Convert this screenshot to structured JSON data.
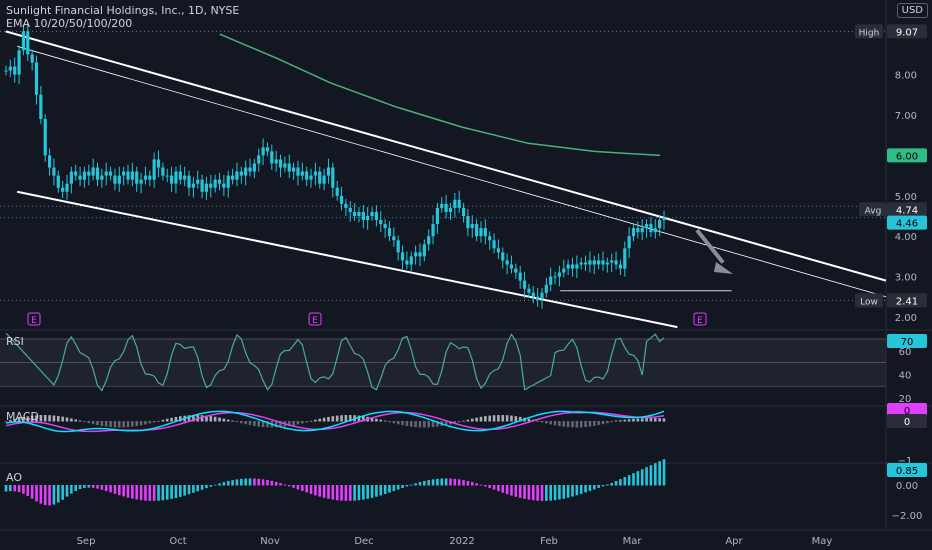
{
  "header": {
    "symbol_title": "Sunlight Financial Holdings, Inc., 1D, NYSE",
    "indicator": "EMA 10/20/50/100/200",
    "currency": "USD"
  },
  "colors": {
    "background": "#131722",
    "candle": "#26c6da",
    "channel": "#ffffff",
    "ema200": "#4caf7a",
    "ema_label": "#2ebd85",
    "rsi_line": "#4aa8a8",
    "rsi_band": "#2a2e39",
    "macd_line": "#00e5ff",
    "signal_line": "#e040fb",
    "ao_pos": "#26c6da",
    "ao_neg": "#e040fb",
    "arrow": "#8a8e99"
  },
  "price_labels": {
    "high": "High",
    "high_val": "9.07",
    "avg": "Avg",
    "avg_val": "4.74",
    "last_val": "4.46",
    "ema_val": "6.00",
    "low": "Low",
    "low_val": "2.41"
  },
  "price_ticks": [
    "9.00",
    "8.00",
    "7.00",
    "6.00",
    "5.00",
    "4.00",
    "3.00",
    "2.00"
  ],
  "earnings_markers": [
    "E",
    "E",
    "E"
  ],
  "rsi": {
    "label": "RSI",
    "value": "70",
    "ticks": [
      "60",
      "40",
      "20"
    ]
  },
  "macd": {
    "label": "MACD",
    "value_hist": "0",
    "value_signal": "0",
    "ticks": [
      "−1"
    ]
  },
  "ao": {
    "label": "AO",
    "value": "0.85",
    "ticks": [
      "0.00",
      "−2.00"
    ]
  },
  "time_axis": [
    "Sep",
    "Oct",
    "Nov",
    "Dec",
    "2022",
    "Feb",
    "Mar",
    "Apr",
    "May"
  ],
  "chart_data": {
    "type": "candlestick",
    "title": "Sunlight Financial Holdings, Inc., 1D, NYSE",
    "x_range": [
      "2021-07-14",
      "2022-05-20"
    ],
    "ylim": [
      1.8,
      9.5
    ],
    "close_approx": [
      8.1,
      8.2,
      8.0,
      8.6,
      9.07,
      8.5,
      8.3,
      7.5,
      6.9,
      6.0,
      5.7,
      5.5,
      5.2,
      5.1,
      5.3,
      5.6,
      5.5,
      5.4,
      5.6,
      5.5,
      5.7,
      5.4,
      5.5,
      5.6,
      5.5,
      5.3,
      5.5,
      5.6,
      5.4,
      5.6,
      5.3,
      5.4,
      5.5,
      5.4,
      5.9,
      5.7,
      5.5,
      5.5,
      5.3,
      5.6,
      5.4,
      5.5,
      5.2,
      5.3,
      5.4,
      5.1,
      5.3,
      5.2,
      5.4,
      5.3,
      5.2,
      5.5,
      5.4,
      5.6,
      5.5,
      5.7,
      5.6,
      5.8,
      6.0,
      6.2,
      6.1,
      5.8,
      5.9,
      5.7,
      5.8,
      5.6,
      5.7,
      5.5,
      5.6,
      5.4,
      5.5,
      5.6,
      5.3,
      5.5,
      5.7,
      5.2,
      5.0,
      4.8,
      4.7,
      4.6,
      4.5,
      4.6,
      4.4,
      4.5,
      4.6,
      4.4,
      4.3,
      4.2,
      4.0,
      3.9,
      3.6,
      3.4,
      3.3,
      3.5,
      3.6,
      3.5,
      3.8,
      4.0,
      4.3,
      4.7,
      4.8,
      4.6,
      4.7,
      4.9,
      4.7,
      4.5,
      4.2,
      4.3,
      4.0,
      4.2,
      4.0,
      3.9,
      3.7,
      3.6,
      3.4,
      3.3,
      3.2,
      3.1,
      2.9,
      2.7,
      2.6,
      2.5,
      2.45,
      2.6,
      2.8,
      3.0,
      3.0,
      3.1,
      3.2,
      3.3,
      3.2,
      3.3,
      3.35,
      3.3,
      3.4,
      3.3,
      3.4,
      3.3,
      3.35,
      3.4,
      3.3,
      3.2,
      3.7,
      4.0,
      4.2,
      4.1,
      4.2,
      4.3,
      4.1,
      4.2,
      4.4,
      4.46
    ],
    "ema200_approx": [
      [
        0.333,
        9.0
      ],
      [
        0.42,
        8.4
      ],
      [
        0.5,
        7.8
      ],
      [
        0.6,
        7.2
      ],
      [
        0.7,
        6.7
      ],
      [
        0.8,
        6.3
      ],
      [
        0.9,
        6.1
      ],
      [
        1.0,
        6.0
      ]
    ],
    "channel_upper": {
      "from": [
        "2021-07-16",
        9.07
      ],
      "to": [
        "2022-05-20",
        2.9
      ]
    },
    "channel_lower": {
      "from": [
        "2021-07-20",
        5.1
      ],
      "to": [
        "2022-03-08",
        1.75
      ]
    },
    "channel_mid": {
      "from": [
        "2021-07-20",
        8.7
      ],
      "to": [
        "2022-05-20",
        2.5
      ]
    },
    "support_line": {
      "y": 2.65,
      "from": "2022-01-26",
      "to": "2022-03-27"
    },
    "forecast_arrow": {
      "from": 4.15,
      "to": 3.25
    }
  }
}
